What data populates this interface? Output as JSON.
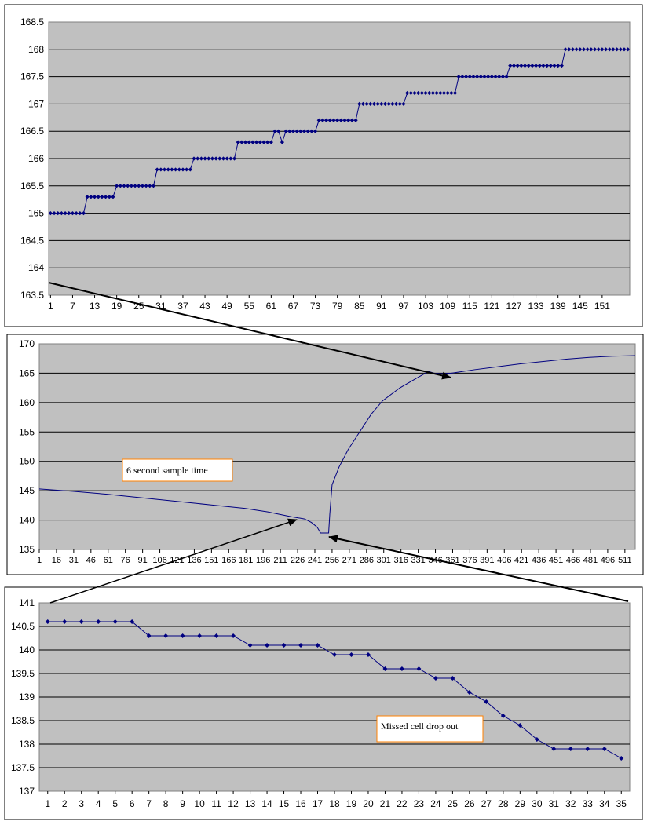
{
  "chart_data": [
    {
      "type": "line",
      "title": "",
      "xlabel": "",
      "ylabel": "",
      "ylim": [
        163.5,
        168.5
      ],
      "yticks": [
        "163.5",
        "164",
        "164.5",
        "165",
        "165.5",
        "166",
        "166.5",
        "167",
        "167.5",
        "168",
        "168.5"
      ],
      "xticks": [
        "1",
        "7",
        "13",
        "19",
        "25",
        "31",
        "37",
        "43",
        "49",
        "55",
        "61",
        "67",
        "73",
        "79",
        "85",
        "91",
        "97",
        "103",
        "109",
        "115",
        "121",
        "127",
        "133",
        "139",
        "145",
        "151"
      ],
      "series": [
        {
          "values": [
            165,
            165,
            165,
            165,
            165,
            165,
            165,
            165,
            165,
            165,
            165.3,
            165.3,
            165.3,
            165.3,
            165.3,
            165.3,
            165.3,
            165.3,
            165.5,
            165.5,
            165.5,
            165.5,
            165.5,
            165.5,
            165.5,
            165.5,
            165.5,
            165.5,
            165.5,
            165.8,
            165.8,
            165.8,
            165.8,
            165.8,
            165.8,
            165.8,
            165.8,
            165.8,
            165.8,
            166,
            166,
            166,
            166,
            166,
            166,
            166,
            166,
            166,
            166,
            166,
            166,
            166.3,
            166.3,
            166.3,
            166.3,
            166.3,
            166.3,
            166.3,
            166.3,
            166.3,
            166.3,
            166.5,
            166.5,
            166.3,
            166.5,
            166.5,
            166.5,
            166.5,
            166.5,
            166.5,
            166.5,
            166.5,
            166.5,
            166.7,
            166.7,
            166.7,
            166.7,
            166.7,
            166.7,
            166.7,
            166.7,
            166.7,
            166.7,
            166.7,
            167,
            167,
            167,
            167,
            167,
            167,
            167,
            167,
            167,
            167,
            167,
            167,
            167,
            167.2,
            167.2,
            167.2,
            167.2,
            167.2,
            167.2,
            167.2,
            167.2,
            167.2,
            167.2,
            167.2,
            167.2,
            167.2,
            167.2,
            167.5,
            167.5,
            167.5,
            167.5,
            167.5,
            167.5,
            167.5,
            167.5,
            167.5,
            167.5,
            167.5,
            167.5,
            167.5,
            167.5,
            167.7,
            167.7,
            167.7,
            167.7,
            167.7,
            167.7,
            167.7,
            167.7,
            167.7,
            167.7,
            167.7,
            167.7,
            167.7,
            167.7,
            167.7,
            168,
            168,
            168,
            168,
            168,
            168,
            168,
            168,
            168,
            168,
            168,
            168,
            168,
            168,
            168,
            168,
            168,
            168
          ]
        }
      ]
    },
    {
      "type": "line",
      "title": "",
      "xlabel": "",
      "ylabel": "",
      "ylim": [
        135,
        170
      ],
      "yticks": [
        "135",
        "140",
        "145",
        "150",
        "155",
        "160",
        "165",
        "170"
      ],
      "xticks": [
        "1",
        "16",
        "31",
        "46",
        "61",
        "76",
        "91",
        "106",
        "121",
        "136",
        "151",
        "166",
        "181",
        "196",
        "211",
        "226",
        "241",
        "256",
        "271",
        "286",
        "301",
        "316",
        "331",
        "346",
        "361",
        "376",
        "391",
        "406",
        "421",
        "436",
        "451",
        "466",
        "481",
        "496",
        "511"
      ],
      "annotation": "6 second sample time",
      "series": [
        {
          "points": [
            [
              1,
              145.3
            ],
            [
              30,
              144.9
            ],
            [
              60,
              144.4
            ],
            [
              90,
              143.8
            ],
            [
              120,
              143.2
            ],
            [
              150,
              142.6
            ],
            [
              180,
              142
            ],
            [
              200,
              141.4
            ],
            [
              220,
              140.6
            ],
            [
              232,
              140.2
            ],
            [
              238,
              139.6
            ],
            [
              243,
              138.8
            ],
            [
              246,
              137.8
            ],
            [
              253,
              137.8
            ],
            [
              254,
              141
            ],
            [
              256,
              146
            ],
            [
              262,
              149
            ],
            [
              270,
              152
            ],
            [
              280,
              155
            ],
            [
              290,
              158
            ],
            [
              300,
              160.3
            ],
            [
              315,
              162.5
            ],
            [
              330,
              164.2
            ],
            [
              340,
              165.3
            ],
            [
              345,
              165
            ],
            [
              350,
              164.9
            ],
            [
              360,
              165
            ],
            [
              380,
              165.6
            ],
            [
              400,
              166.1
            ],
            [
              420,
              166.6
            ],
            [
              440,
              167
            ],
            [
              460,
              167.4
            ],
            [
              480,
              167.7
            ],
            [
              500,
              167.9
            ],
            [
              520,
              168
            ]
          ]
        }
      ]
    },
    {
      "type": "line",
      "title": "",
      "xlabel": "",
      "ylabel": "",
      "ylim": [
        137,
        141
      ],
      "yticks": [
        "137",
        "137.5",
        "138",
        "138.5",
        "139",
        "139.5",
        "140",
        "140.5",
        "141"
      ],
      "categories": [
        "1",
        "2",
        "3",
        "4",
        "5",
        "6",
        "7",
        "8",
        "9",
        "10",
        "11",
        "12",
        "13",
        "14",
        "15",
        "16",
        "17",
        "18",
        "19",
        "20",
        "21",
        "22",
        "23",
        "24",
        "25",
        "26",
        "27",
        "28",
        "29",
        "30",
        "31",
        "32",
        "33",
        "34",
        "35"
      ],
      "annotation": "Missed cell drop out",
      "series": [
        {
          "values": [
            140.6,
            140.6,
            140.6,
            140.6,
            140.6,
            140.6,
            140.3,
            140.3,
            140.3,
            140.3,
            140.3,
            140.3,
            140.1,
            140.1,
            140.1,
            140.1,
            140.1,
            139.9,
            139.9,
            139.9,
            139.6,
            139.6,
            139.6,
            139.4,
            139.4,
            139.1,
            138.9,
            138.6,
            138.4,
            138.1,
            137.9,
            137.9,
            137.9,
            137.9,
            137.7
          ]
        }
      ]
    }
  ],
  "colors": {
    "plot_bg": "#c0c0c0",
    "series": "#000080",
    "grid": "#000000"
  }
}
